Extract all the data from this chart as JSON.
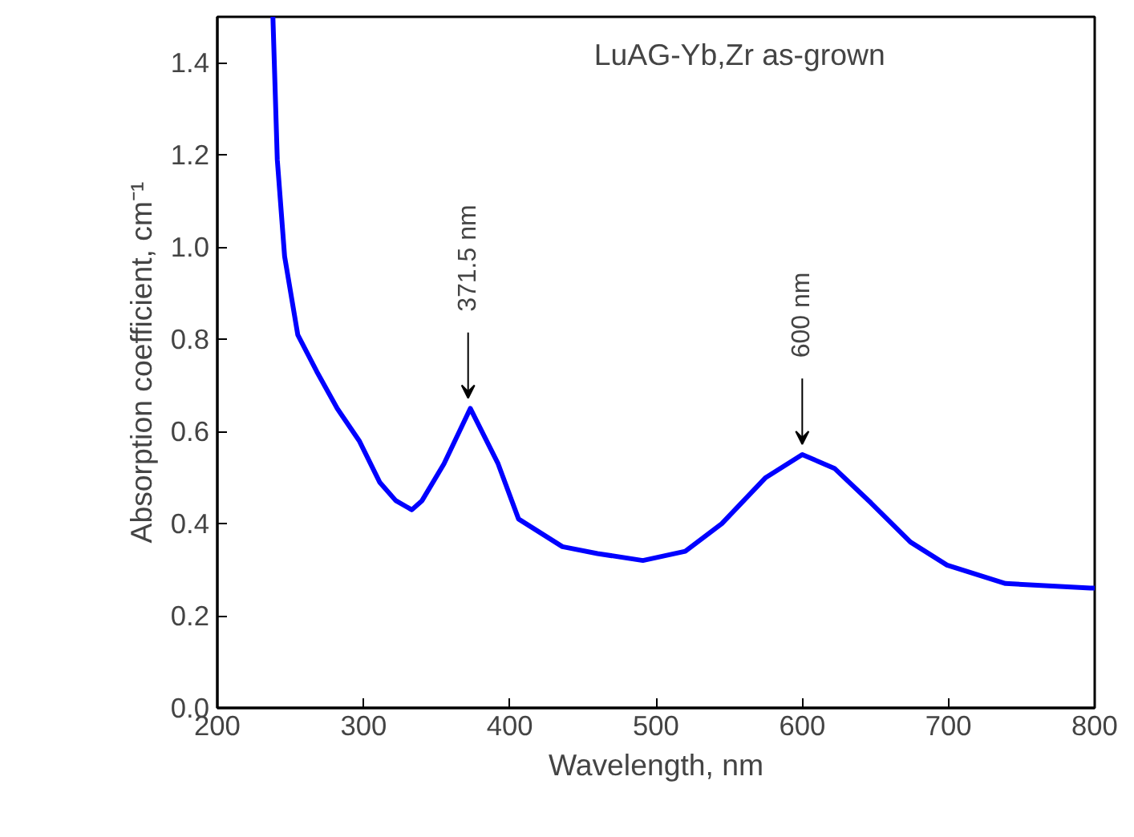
{
  "chart_data": {
    "type": "line",
    "xlabel": "Wavelength, nm",
    "ylabel": "Absorption coefficient, cm⁻¹",
    "xlim": [
      200,
      800
    ],
    "ylim": [
      0,
      1.5
    ],
    "xticks": [
      200,
      300,
      400,
      500,
      600,
      700,
      800
    ],
    "yticks": [
      {
        "value": 0,
        "label": "0.0"
      },
      0.2,
      0.4,
      0.6,
      0.8,
      {
        "value": 1,
        "label": "1.0"
      },
      1.2,
      1.4
    ],
    "grid": false,
    "line_style": "solid",
    "marker": "none",
    "series": [
      {
        "color": "#0000ff",
        "x": [
          238,
          241,
          246,
          255,
          268,
          282,
          297,
          311,
          322,
          333,
          340,
          355,
          373,
          392,
          406,
          436,
          460,
          491,
          520,
          545,
          575,
          600,
          622,
          647,
          674,
          699,
          739,
          797,
          800
        ],
        "values": [
          1.5,
          1.19,
          0.98,
          0.81,
          0.73,
          0.65,
          0.58,
          0.49,
          0.45,
          0.43,
          0.45,
          0.53,
          0.65,
          0.53,
          0.41,
          0.35,
          0.335,
          0.32,
          0.34,
          0.4,
          0.5,
          0.55,
          0.52,
          0.445,
          0.36,
          0.31,
          0.27,
          0.26,
          0.26
        ]
      }
    ],
    "annotations": [
      "LuAG-Yb,Zr  as-grown",
      {
        "text": "371.5 nm",
        "x": 371.5,
        "y": 0.65
      },
      {
        "text": "600 nm",
        "x": 600,
        "y": 0.55
      }
    ]
  }
}
